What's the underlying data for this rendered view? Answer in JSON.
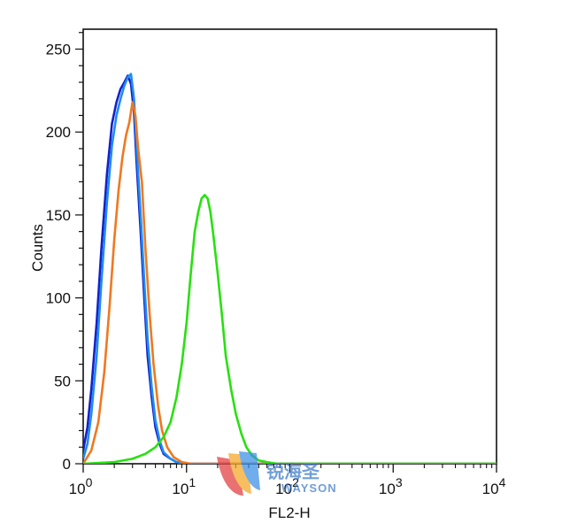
{
  "chart_data": {
    "type": "line",
    "xlabel": "FL2-H",
    "ylabel": "Counts",
    "xscale": "log",
    "xlim": [
      1,
      10000
    ],
    "ylim": [
      0,
      262
    ],
    "x_ticks": [
      {
        "value": 1,
        "base": "10",
        "exp": "0"
      },
      {
        "value": 10,
        "base": "10",
        "exp": "1"
      },
      {
        "value": 100,
        "base": "10",
        "exp": "2"
      },
      {
        "value": 1000,
        "base": "10",
        "exp": "3"
      },
      {
        "value": 10000,
        "base": "10",
        "exp": "4"
      }
    ],
    "y_ticks": [
      0,
      50,
      100,
      150,
      200,
      250
    ],
    "grid": false,
    "legend": "none",
    "series": [
      {
        "color": "#1520c8",
        "x": [
          1.0,
          1.1,
          1.2,
          1.35,
          1.5,
          1.7,
          1.9,
          2.1,
          2.3,
          2.5,
          2.7,
          2.9,
          3.1,
          3.3,
          3.6,
          3.9,
          4.2,
          4.6,
          5.0,
          5.5,
          6.0,
          7.0,
          8.0,
          10.0,
          100.0,
          10000.0
        ],
        "y": [
          8,
          22,
          45,
          85,
          130,
          175,
          205,
          218,
          226,
          230,
          234,
          229,
          212,
          180,
          140,
          100,
          65,
          40,
          22,
          12,
          6,
          3,
          1,
          0,
          0,
          0
        ]
      },
      {
        "color": "#1e8cf0",
        "x": [
          1.0,
          1.1,
          1.2,
          1.35,
          1.5,
          1.7,
          1.9,
          2.1,
          2.3,
          2.5,
          2.7,
          2.9,
          3.1,
          3.3,
          3.6,
          3.9,
          4.2,
          4.6,
          5.0,
          5.5,
          6.0,
          7.0,
          8.0,
          10.0,
          100.0,
          10000.0
        ],
        "y": [
          3,
          12,
          30,
          65,
          110,
          158,
          192,
          210,
          220,
          228,
          233,
          235,
          220,
          190,
          150,
          110,
          75,
          46,
          26,
          14,
          7,
          3,
          1,
          0,
          0,
          0
        ]
      },
      {
        "color": "#f07820",
        "x": [
          1.0,
          1.2,
          1.4,
          1.6,
          1.8,
          2.0,
          2.2,
          2.4,
          2.6,
          2.8,
          3.0,
          3.2,
          3.4,
          3.7,
          4.0,
          4.4,
          4.8,
          5.3,
          5.8,
          6.5,
          7.5,
          9.0,
          11.0,
          100.0,
          10000.0
        ],
        "y": [
          0,
          8,
          25,
          55,
          95,
          135,
          165,
          185,
          198,
          206,
          218,
          210,
          190,
          170,
          130,
          90,
          60,
          35,
          20,
          10,
          4,
          1,
          0,
          0,
          0
        ]
      },
      {
        "color": "#28e010",
        "x": [
          1.0,
          2.0,
          3.0,
          4.0,
          5.0,
          6.0,
          7.0,
          8.0,
          9.0,
          10.0,
          11.0,
          12.0,
          13.0,
          14.0,
          15.0,
          16.0,
          17.0,
          18.0,
          20.0,
          22.0,
          24.0,
          27.0,
          30.0,
          34.0,
          38.0,
          43.0,
          50.0,
          60.0,
          75.0,
          100.0,
          10000.0
        ],
        "y": [
          0,
          1,
          3,
          6,
          10,
          16,
          25,
          40,
          60,
          85,
          115,
          140,
          152,
          160,
          162,
          160,
          152,
          140,
          115,
          90,
          65,
          45,
          30,
          18,
          10,
          5,
          2,
          1,
          0,
          0,
          0
        ]
      }
    ]
  },
  "watermark": {
    "brand_cn": "锐海圣",
    "brand_en": "WAYSON"
  }
}
